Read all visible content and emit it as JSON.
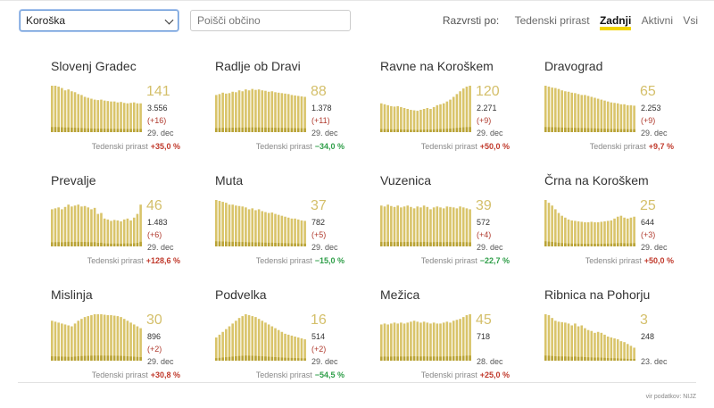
{
  "toolbar": {
    "region": "Koroška",
    "search_placeholder": "Poišči občino",
    "sort_label": "Razvrsti po:",
    "sort_options": [
      "Tedenski prirast",
      "Zadnji",
      "Aktivni",
      "Vsi"
    ],
    "active_sort": "Zadnji"
  },
  "colors": {
    "bar": "#d9c46a",
    "bar_dark": "#b9a336",
    "up": "#c0392b",
    "down": "#2e9e48",
    "accent": "#f2d500"
  },
  "trend_label": "Tedenski prirast",
  "cards": [
    {
      "name": "Slovenj Gradec",
      "active": "141",
      "total": "3.556",
      "diff": "(+16)",
      "date": "29. dec",
      "trend": "+35,0 %",
      "dir": "up",
      "bars": [
        1,
        1,
        0.98,
        0.95,
        0.9,
        0.92,
        0.88,
        0.86,
        0.82,
        0.8,
        0.76,
        0.74,
        0.72,
        0.7,
        0.69,
        0.7,
        0.68,
        0.67,
        0.66,
        0.66,
        0.64,
        0.65,
        0.63,
        0.62,
        0.63,
        0.64,
        0.62,
        0.62
      ]
    },
    {
      "name": "Radlje ob Dravi",
      "active": "88",
      "total": "1.378",
      "diff": "(+11)",
      "date": "29. dec",
      "trend": "−34,0 %",
      "dir": "down",
      "bars": [
        0.8,
        0.82,
        0.85,
        0.83,
        0.84,
        0.87,
        0.86,
        0.9,
        0.88,
        0.92,
        0.9,
        0.93,
        0.91,
        0.92,
        0.9,
        0.89,
        0.87,
        0.88,
        0.86,
        0.85,
        0.84,
        0.83,
        0.82,
        0.8,
        0.79,
        0.78,
        0.77,
        0.76
      ]
    },
    {
      "name": "Ravne na Koroškem",
      "active": "120",
      "total": "2.271",
      "diff": "(+9)",
      "date": "29. dec",
      "trend": "+50,0 %",
      "dir": "up",
      "bars": [
        0.62,
        0.6,
        0.58,
        0.56,
        0.55,
        0.56,
        0.54,
        0.52,
        0.5,
        0.48,
        0.47,
        0.46,
        0.48,
        0.5,
        0.52,
        0.5,
        0.54,
        0.58,
        0.6,
        0.62,
        0.66,
        0.7,
        0.76,
        0.82,
        0.88,
        0.94,
        0.98,
        1
      ]
    },
    {
      "name": "Dravograd",
      "active": "65",
      "total": "2.253",
      "diff": "(+9)",
      "date": "29. dec",
      "trend": "+9,7 %",
      "dir": "up",
      "bars": [
        1,
        0.98,
        0.96,
        0.95,
        0.93,
        0.9,
        0.88,
        0.87,
        0.85,
        0.84,
        0.82,
        0.8,
        0.8,
        0.78,
        0.76,
        0.74,
        0.72,
        0.7,
        0.68,
        0.66,
        0.64,
        0.63,
        0.62,
        0.6,
        0.6,
        0.58,
        0.58,
        0.57
      ]
    },
    {
      "name": "Prevalje",
      "active": "46",
      "total": "1.483",
      "diff": "(+6)",
      "date": "29. dec",
      "trend": "+128,6 %",
      "dir": "up",
      "bars": [
        0.8,
        0.82,
        0.84,
        0.8,
        0.85,
        0.9,
        0.86,
        0.88,
        0.9,
        0.86,
        0.87,
        0.84,
        0.8,
        0.83,
        0.7,
        0.72,
        0.6,
        0.58,
        0.55,
        0.57,
        0.56,
        0.54,
        0.58,
        0.6,
        0.56,
        0.62,
        0.7,
        0.9
      ]
    },
    {
      "name": "Muta",
      "active": "37",
      "total": "782",
      "diff": "(+5)",
      "date": "29. dec",
      "trend": "−15,0 %",
      "dir": "down",
      "bars": [
        1,
        0.98,
        0.96,
        0.94,
        0.9,
        0.9,
        0.88,
        0.87,
        0.86,
        0.84,
        0.8,
        0.82,
        0.78,
        0.8,
        0.76,
        0.74,
        0.72,
        0.73,
        0.7,
        0.68,
        0.66,
        0.64,
        0.62,
        0.6,
        0.6,
        0.58,
        0.56,
        0.55
      ]
    },
    {
      "name": "Vuzenica",
      "active": "39",
      "total": "572",
      "diff": "(+4)",
      "date": "29. dec",
      "trend": "−22,7 %",
      "dir": "down",
      "bars": [
        0.88,
        0.86,
        0.9,
        0.87,
        0.85,
        0.88,
        0.84,
        0.86,
        0.88,
        0.85,
        0.82,
        0.86,
        0.84,
        0.88,
        0.85,
        0.8,
        0.84,
        0.86,
        0.84,
        0.82,
        0.86,
        0.85,
        0.84,
        0.82,
        0.86,
        0.84,
        0.82,
        0.8
      ]
    },
    {
      "name": "Črna na Koroškem",
      "active": "25",
      "total": "644",
      "diff": "(+3)",
      "date": "29. dec",
      "trend": "+50,0 %",
      "dir": "up",
      "bars": [
        1,
        0.94,
        0.88,
        0.8,
        0.72,
        0.66,
        0.62,
        0.58,
        0.56,
        0.55,
        0.54,
        0.53,
        0.52,
        0.52,
        0.53,
        0.52,
        0.52,
        0.53,
        0.54,
        0.55,
        0.56,
        0.6,
        0.64,
        0.66,
        0.62,
        0.6,
        0.62,
        0.64
      ]
    },
    {
      "name": "Mislinja",
      "active": "30",
      "total": "896",
      "diff": "(+2)",
      "date": "29. dec",
      "trend": "+30,8 %",
      "dir": "up",
      "bars": [
        0.86,
        0.84,
        0.82,
        0.8,
        0.78,
        0.76,
        0.74,
        0.8,
        0.86,
        0.9,
        0.94,
        0.96,
        0.98,
        1,
        1,
        1,
        0.99,
        0.98,
        0.98,
        0.97,
        0.96,
        0.94,
        0.9,
        0.86,
        0.82,
        0.78,
        0.74,
        0.7
      ]
    },
    {
      "name": "Podvelka",
      "active": "16",
      "total": "514",
      "diff": "(+2)",
      "date": "29. dec",
      "trend": "−54,5 %",
      "dir": "down",
      "bars": [
        0.5,
        0.56,
        0.62,
        0.68,
        0.74,
        0.8,
        0.86,
        0.92,
        0.96,
        1,
        0.98,
        0.96,
        0.94,
        0.9,
        0.86,
        0.82,
        0.78,
        0.74,
        0.7,
        0.66,
        0.62,
        0.58,
        0.56,
        0.54,
        0.52,
        0.5,
        0.48,
        0.46
      ]
    },
    {
      "name": "Mežica",
      "active": "45",
      "total": "718",
      "diff": "",
      "date": "28. dec",
      "trend": "+25,0 %",
      "dir": "up",
      "bars": [
        0.78,
        0.8,
        0.78,
        0.8,
        0.82,
        0.8,
        0.82,
        0.8,
        0.82,
        0.84,
        0.86,
        0.84,
        0.82,
        0.84,
        0.82,
        0.8,
        0.82,
        0.8,
        0.8,
        0.82,
        0.84,
        0.82,
        0.86,
        0.88,
        0.9,
        0.94,
        0.98,
        1
      ]
    },
    {
      "name": "Ribnica na Pohorju",
      "active": "3",
      "total": "248",
      "diff": "",
      "date": "23. dec",
      "trend": "",
      "dir": "up",
      "bars": [
        1,
        0.98,
        0.92,
        0.86,
        0.84,
        0.83,
        0.82,
        0.8,
        0.76,
        0.8,
        0.74,
        0.76,
        0.7,
        0.66,
        0.64,
        0.6,
        0.62,
        0.6,
        0.56,
        0.52,
        0.5,
        0.48,
        0.46,
        0.42,
        0.4,
        0.36,
        0.32,
        0.28
      ]
    }
  ],
  "source": "vir podatkov: NIJZ"
}
